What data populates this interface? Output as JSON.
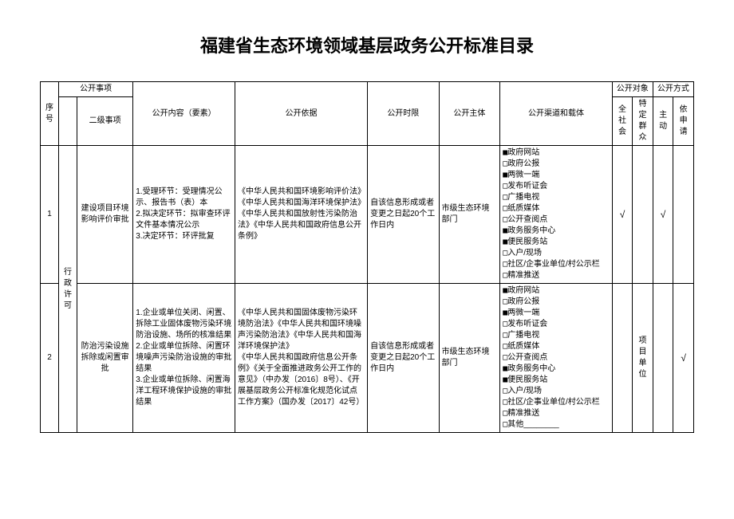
{
  "title": "福建省生态环境领域基层政务公开标准目录",
  "header": {
    "seq": "序号",
    "matter": "公开事项",
    "level2": "二级事项",
    "content": "公开内容（要素）",
    "basis": "公开依据",
    "timing": "公开时限",
    "subject": "公开主体",
    "channel": "公开渠道和载体",
    "audience": "公开对象",
    "audience_all": "全社会",
    "audience_spec": "特定群众",
    "method": "公开方式",
    "method_active": "主动",
    "method_apply": "依申请"
  },
  "category": "行政许可",
  "rows": [
    {
      "seq": "1",
      "l2": "建设项目环境影响评价审批",
      "content": "1.受理环节：受理情况公示、报告书（表）本\n2.拟决定环节：拟审查环评文件基本情况公示\n3.决定环节：环评批复",
      "basis": "《中华人民共和国环境影响评价法》《中华人民共和国海洋环境保护法》《中华人民共和国放射性污染防治法》《中华人民共和国政府信息公开条例》",
      "timing": "自该信息形成或者变更之日起20个工作日内",
      "subject": "市级生态环境部门",
      "channels": [
        {
          "label": "政府网站",
          "checked": true
        },
        {
          "label": "政府公报",
          "checked": false
        },
        {
          "label": "两微一端",
          "checked": true
        },
        {
          "label": "发布听证会",
          "checked": false
        },
        {
          "label": "广播电视",
          "checked": false
        },
        {
          "label": "纸质媒体",
          "checked": false
        },
        {
          "label": "公开查阅点",
          "checked": false
        },
        {
          "label": "政务服务中心",
          "checked": true
        },
        {
          "label": "便民服务站",
          "checked": true
        },
        {
          "label": "入户/现场",
          "checked": false
        },
        {
          "label": "社区/企事业单位/村公示栏",
          "checked": false
        },
        {
          "label": "精准推送",
          "checked": false
        }
      ],
      "aud_all": "√",
      "aud_spec": "",
      "m_active": "√",
      "m_apply": ""
    },
    {
      "seq": "2",
      "l2": "防治污染设施拆除或闲置审批",
      "content": "1.企业或单位关闭、闲置、拆除工业固体废物污染环境防治设施、场所的核准结果\n2.企业或单位拆除、闲置环境噪声污染防治设施的审批结果\n3.企业或单位拆除、闲置海洋工程环境保护设施的审批结果",
      "basis": "《中华人民共和国固体废物污染环境防治法》《中华人民共和国环境噪声污染防治法》《中华人民共和国海洋环境保护法》\n《中华人民共和国政府信息公开条例》《关于全面推进政务公开工作的意见》（中办发〔2016〕8号）、《开展基层政务公开标准化规范化试点工作方案》（国办发〔2017〕42号）",
      "timing": "自该信息形成或者变更之日起20个工作日内",
      "subject": "市级生态环境部门",
      "channels": [
        {
          "label": "政府网站",
          "checked": true
        },
        {
          "label": "政府公报",
          "checked": false
        },
        {
          "label": "两微一端",
          "checked": true
        },
        {
          "label": "发布听证会",
          "checked": false
        },
        {
          "label": "广播电视",
          "checked": false
        },
        {
          "label": "纸质媒体",
          "checked": false
        },
        {
          "label": "公开查阅点",
          "checked": false
        },
        {
          "label": "政务服务中心",
          "checked": true
        },
        {
          "label": "便民服务站",
          "checked": true
        },
        {
          "label": "入户/现场",
          "checked": false
        },
        {
          "label": "社区/企事业单位/村公示栏",
          "checked": false
        },
        {
          "label": "精准推送",
          "checked": false
        },
        {
          "label": "其他________",
          "checked": false
        }
      ],
      "aud_all": "",
      "aud_spec": "项目单位",
      "m_active": "",
      "m_apply": "√"
    }
  ]
}
